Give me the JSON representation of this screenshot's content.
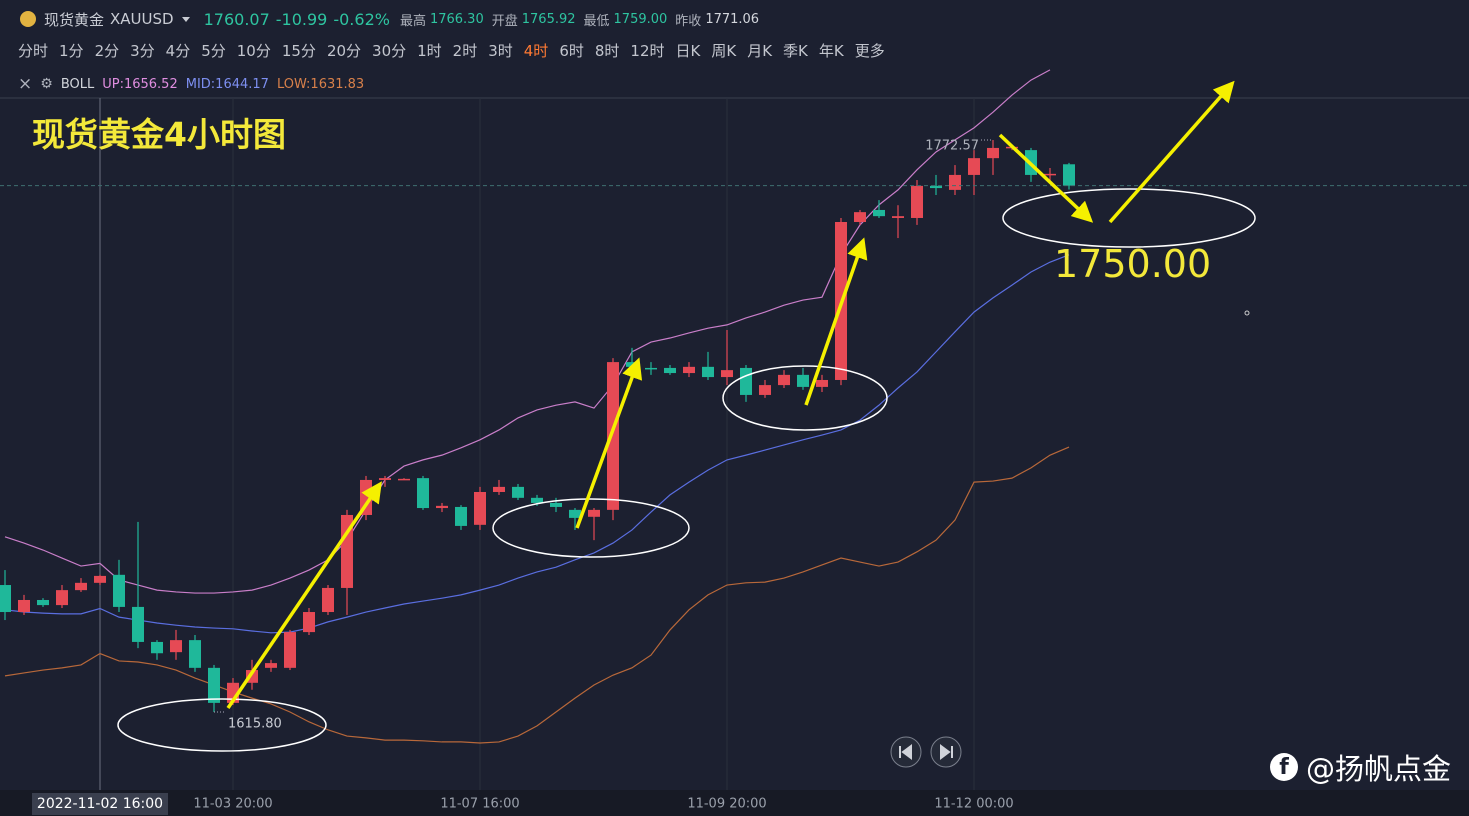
{
  "header": {
    "symbol_name": "现货黄金",
    "symbol": "XAUUSD",
    "price": "1760.07",
    "change": "-10.99",
    "change_pct": "-0.62%",
    "stats": [
      {
        "label": "最高",
        "value": "1766.30"
      },
      {
        "label": "开盘",
        "value": "1765.92"
      },
      {
        "label": "最低",
        "value": "1759.00"
      },
      {
        "label": "昨收",
        "value": "1771.06"
      }
    ]
  },
  "timeframes": [
    "分时",
    "1分",
    "2分",
    "3分",
    "4分",
    "5分",
    "10分",
    "15分",
    "20分",
    "30分",
    "1时",
    "2时",
    "3时",
    "4时",
    "6时",
    "8时",
    "12时",
    "日K",
    "周K",
    "月K",
    "季K",
    "年K",
    "更多"
  ],
  "active_timeframe": "4时",
  "indicator": "BOLL",
  "watermark": "@扬帆点金",
  "chart_data": {
    "type": "candlestick",
    "title": "现货黄金4小时图",
    "annotations": [
      "1750.00"
    ],
    "high_label": "1772.57",
    "low_label": "1615.80",
    "up_color": "#e64a55",
    "down_color": "#1fb89a",
    "ylim": [
      1594.42,
      1791.76
    ],
    "categories": [
      null,
      null,
      null,
      null,
      null,
      "2022-11-02 16:00",
      null,
      null,
      null,
      null,
      null,
      null,
      "11-03 20:00",
      null,
      null,
      null,
      null,
      null,
      null,
      null,
      null,
      null,
      null,
      null,
      null,
      "11-07 16:00",
      null,
      null,
      null,
      null,
      null,
      null,
      null,
      null,
      null,
      null,
      null,
      null,
      "11-09 20:00",
      null,
      null,
      null,
      null,
      null,
      null,
      null,
      null,
      null,
      null,
      null,
      null,
      "11-12 00:00",
      null,
      null,
      null,
      null,
      null
    ],
    "open": [
      1650.6,
      1643.2,
      1646.5,
      1645.1,
      1649.2,
      1651.2,
      1653.4,
      1644.6,
      1635.0,
      1632.2,
      1635.5,
      1627.9,
      1618.3,
      1623.8,
      1627.9,
      1627.9,
      1637.7,
      1643.2,
      1649.8,
      1669.8,
      1679.4,
      1679.4,
      1679.9,
      1671.7,
      1672.0,
      1667.1,
      1676.1,
      1677.5,
      1674.5,
      1673.1,
      1671.2,
      1669.3,
      1671.2,
      1711.7,
      1710.1,
      1710.1,
      1708.7,
      1710.4,
      1707.6,
      1710.1,
      1702.7,
      1705.4,
      1708.2,
      1704.9,
      1706.8,
      1750.1,
      1753.4,
      1751.2,
      1751.2,
      1760.0,
      1758.9,
      1763.0,
      1767.6,
      1770.4,
      1769.8,
      1763.0,
      1765.92
    ],
    "high": [
      1654.7,
      1647.9,
      1647.0,
      1650.6,
      1652.5,
      1653.4,
      1657.5,
      1667.9,
      1635.5,
      1638.3,
      1636.9,
      1628.7,
      1625.1,
      1630.1,
      1630.1,
      1638.3,
      1644.3,
      1650.6,
      1671.2,
      1680.5,
      1680.5,
      1679.9,
      1680.5,
      1673.1,
      1672.5,
      1677.5,
      1679.4,
      1678.3,
      1675.3,
      1674.5,
      1671.7,
      1671.7,
      1712.8,
      1715.6,
      1711.7,
      1710.9,
      1711.7,
      1714.5,
      1720.5,
      1710.9,
      1706.8,
      1709.5,
      1710.1,
      1708.2,
      1751.2,
      1753.4,
      1756.1,
      1754.7,
      1761.6,
      1763.0,
      1765.7,
      1769.8,
      1772.57,
      1771.2,
      1770.4,
      1764.9,
      1766.3
    ],
    "low": [
      1641.0,
      1642.4,
      1644.6,
      1644.3,
      1648.7,
      1650.6,
      1643.2,
      1633.3,
      1630.1,
      1630.1,
      1626.8,
      1615.8,
      1617.7,
      1621.9,
      1626.8,
      1627.3,
      1636.9,
      1642.4,
      1642.4,
      1668.4,
      1677.5,
      1679.4,
      1671.2,
      1670.6,
      1665.7,
      1665.7,
      1675.3,
      1673.9,
      1672.3,
      1670.6,
      1665.7,
      1662.9,
      1668.4,
      1709.5,
      1708.2,
      1708.2,
      1707.6,
      1706.8,
      1705.4,
      1700.8,
      1701.9,
      1704.6,
      1704.1,
      1703.5,
      1705.4,
      1749.3,
      1751.2,
      1745.7,
      1749.3,
      1757.5,
      1757.5,
      1757.5,
      1763.0,
      1769.8,
      1761.1,
      1761.1,
      1759.0
    ],
    "close": [
      1643.2,
      1646.5,
      1645.1,
      1649.2,
      1651.2,
      1653.1,
      1644.6,
      1635.0,
      1631.9,
      1635.5,
      1627.9,
      1618.3,
      1623.8,
      1627.3,
      1629.2,
      1637.7,
      1643.2,
      1649.8,
      1669.8,
      1679.4,
      1679.9,
      1679.7,
      1671.7,
      1672.3,
      1666.8,
      1676.1,
      1677.5,
      1674.5,
      1673.1,
      1672.0,
      1669.0,
      1671.2,
      1711.7,
      1710.4,
      1709.8,
      1708.7,
      1710.4,
      1707.6,
      1709.5,
      1702.7,
      1705.4,
      1708.2,
      1704.9,
      1706.8,
      1750.1,
      1752.8,
      1751.7,
      1751.7,
      1760.0,
      1759.4,
      1763.0,
      1767.6,
      1770.4,
      1770.7,
      1763.0,
      1763.3,
      1760.07
    ],
    "series": [
      {
        "name": "UP:1656.52",
        "color": "#c97ec9",
        "legend_color": "#e08ee0",
        "values": [
          1663.8,
          1662.1,
          1660.2,
          1658.0,
          1655.8,
          1656.52,
          1652.0,
          1650.6,
          1649.2,
          1648.7,
          1648.4,
          1648.4,
          1648.7,
          1649.2,
          1650.6,
          1652.5,
          1654.7,
          1657.5,
          1662.9,
          1671.2,
          1679.4,
          1683.2,
          1684.9,
          1686.2,
          1688.2,
          1690.4,
          1693.1,
          1696.4,
          1698.6,
          1699.9,
          1700.8,
          1699.1,
          1705.4,
          1714.5,
          1717.2,
          1718.3,
          1719.7,
          1721.0,
          1721.9,
          1723.8,
          1725.4,
          1727.3,
          1728.7,
          1729.5,
          1741.1,
          1749.3,
          1754.8,
          1758.9,
          1764.4,
          1769.3,
          1772.6,
          1775.9,
          1780.2,
          1784.9,
          1789.0,
          1791.8,
          null
        ]
      },
      {
        "name": "MID:1644.17",
        "color": "#5a6ee0",
        "legend_color": "#7d8ff0",
        "values": [
          1643.8,
          1643.2,
          1642.9,
          1642.7,
          1642.7,
          1644.17,
          1641.8,
          1641.0,
          1640.2,
          1639.6,
          1639.1,
          1638.8,
          1638.6,
          1638.0,
          1637.5,
          1637.7,
          1638.8,
          1640.5,
          1641.8,
          1643.2,
          1644.3,
          1645.4,
          1646.2,
          1647.0,
          1647.9,
          1649.2,
          1650.6,
          1652.5,
          1654.2,
          1655.5,
          1657.5,
          1659.4,
          1662.1,
          1665.7,
          1670.6,
          1675.3,
          1678.8,
          1682.1,
          1684.9,
          1686.2,
          1687.6,
          1689.0,
          1690.4,
          1691.7,
          1693.1,
          1695.8,
          1699.9,
          1704.6,
          1709.0,
          1714.5,
          1720.0,
          1725.4,
          1729.3,
          1732.8,
          1736.4,
          1739.1,
          1741.1
        ]
      },
      {
        "name": "LOW:1631.83",
        "color": "#b8683a",
        "legend_color": "#d8804a",
        "values": [
          1625.7,
          1626.5,
          1627.3,
          1627.9,
          1628.7,
          1631.83,
          1629.8,
          1629.5,
          1628.7,
          1627.3,
          1625.1,
          1623.2,
          1621.3,
          1619.6,
          1618.0,
          1615.8,
          1613.1,
          1610.9,
          1609.2,
          1608.7,
          1608.1,
          1608.1,
          1607.9,
          1607.6,
          1607.6,
          1607.3,
          1607.6,
          1609.2,
          1612.0,
          1615.8,
          1619.6,
          1623.2,
          1625.9,
          1627.9,
          1631.4,
          1638.3,
          1643.8,
          1647.9,
          1650.6,
          1651.2,
          1651.4,
          1652.5,
          1654.2,
          1656.1,
          1658.0,
          1656.9,
          1655.8,
          1656.9,
          1659.7,
          1662.9,
          1668.4,
          1678.8,
          1679.1,
          1679.9,
          1682.7,
          1686.2,
          1688.4
        ]
      }
    ]
  }
}
